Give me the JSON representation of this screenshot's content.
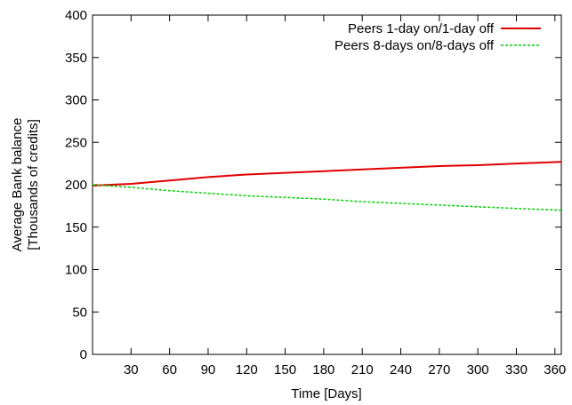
{
  "chart_data": {
    "type": "line",
    "xlabel": "Time [Days]",
    "ylabel_lines": [
      "Average Bank balance",
      "[Thousands of credits]"
    ],
    "xlim": [
      0,
      365
    ],
    "ylim": [
      0,
      400
    ],
    "xticks": [
      30,
      60,
      90,
      120,
      150,
      180,
      210,
      240,
      270,
      300,
      330,
      360
    ],
    "yticks": [
      0,
      50,
      100,
      150,
      200,
      250,
      300,
      350,
      400
    ],
    "grid": false,
    "legend_position": "top-right",
    "series": [
      {
        "name": "Peers 1-day  on/1-day  off",
        "color": "#e00000",
        "dash": "solid",
        "x": [
          0,
          30,
          60,
          90,
          120,
          150,
          180,
          210,
          240,
          270,
          300,
          330,
          365
        ],
        "y": [
          199,
          201,
          205,
          209,
          212,
          214,
          216,
          218,
          220,
          222,
          223,
          225,
          227
        ]
      },
      {
        "name": "Peers 8-days on/8-days off",
        "color": "#00d000",
        "dash": "dashed",
        "x": [
          0,
          30,
          60,
          90,
          120,
          150,
          180,
          210,
          240,
          270,
          300,
          330,
          365
        ],
        "y": [
          200,
          197,
          193,
          190,
          187,
          185,
          183,
          180,
          178,
          176,
          174,
          172,
          170
        ]
      }
    ]
  }
}
